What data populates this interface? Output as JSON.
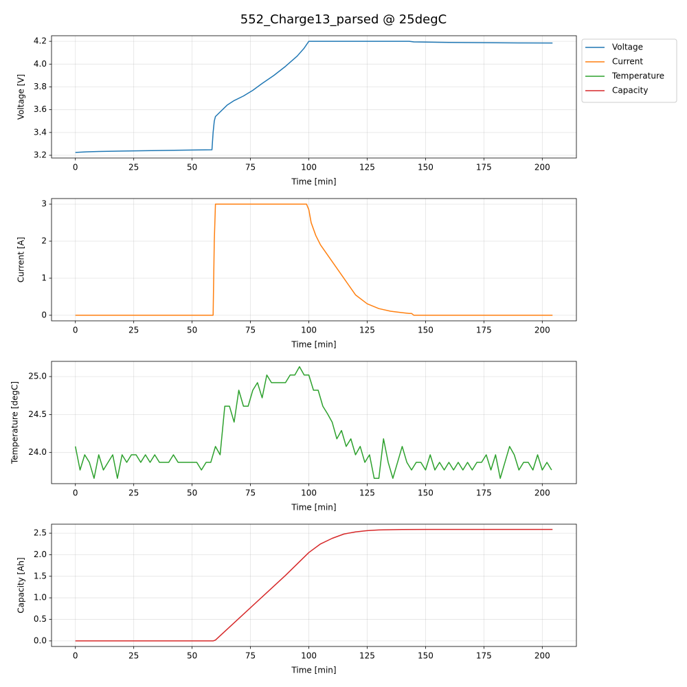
{
  "title": "552_Charge13_parsed @ 25degC",
  "chart_data": [
    {
      "type": "line",
      "xlabel": "Time [min]",
      "ylabel": "Voltage [V]",
      "grid": true,
      "xlim": [
        -10.22,
        214.62
      ],
      "ylim": [
        3.176,
        4.249
      ],
      "xticks": [
        0,
        25,
        50,
        75,
        100,
        125,
        150,
        175,
        200
      ],
      "yticks": [
        3.2,
        3.4,
        3.6,
        3.8,
        {
          "value": 4,
          "label": "4.0"
        },
        4.2
      ],
      "x": [
        0,
        5,
        10,
        20,
        30,
        40,
        50,
        58.5,
        59,
        59.5,
        60,
        62,
        65,
        68,
        72,
        76,
        80,
        85,
        90,
        95,
        98,
        100,
        110,
        120,
        130,
        143,
        145,
        150,
        160,
        175,
        190,
        204.4
      ],
      "series": [
        {
          "name": "Voltage",
          "color": "#1f77b4",
          "values": [
            3.225,
            3.23,
            3.233,
            3.237,
            3.24,
            3.243,
            3.246,
            3.248,
            3.4,
            3.5,
            3.54,
            3.58,
            3.64,
            3.68,
            3.72,
            3.77,
            3.83,
            3.9,
            3.98,
            4.07,
            4.14,
            4.2,
            4.2,
            4.2,
            4.2,
            4.2,
            4.195,
            4.193,
            4.19,
            4.188,
            4.186,
            4.185
          ]
        }
      ]
    },
    {
      "type": "line",
      "xlabel": "Time [min]",
      "ylabel": "Current [A]",
      "grid": true,
      "xlim": [
        -10.22,
        214.62
      ],
      "ylim": [
        -0.15,
        3.15
      ],
      "xticks": [
        0,
        25,
        50,
        75,
        100,
        125,
        150,
        175,
        200
      ],
      "yticks": [
        0,
        1,
        2,
        3
      ],
      "x": [
        0,
        59,
        59.5,
        60,
        70,
        90,
        99,
        100,
        101,
        103,
        105,
        110,
        115,
        120,
        125,
        130,
        135,
        140,
        143,
        144,
        145,
        204.4
      ],
      "series": [
        {
          "name": "Current",
          "color": "#ff7f0e",
          "values": [
            0,
            0,
            2.0,
            3.0,
            3.0,
            3.0,
            3.0,
            2.85,
            2.5,
            2.15,
            1.9,
            1.45,
            1.0,
            0.55,
            0.31,
            0.18,
            0.11,
            0.07,
            0.05,
            0.05,
            0,
            0
          ]
        }
      ]
    },
    {
      "type": "line",
      "xlabel": "Time [min]",
      "ylabel": "Temperature [degC]",
      "grid": true,
      "xlim": [
        -10.22,
        214.62
      ],
      "ylim": [
        23.59,
        25.2
      ],
      "xticks": [
        0,
        25,
        50,
        75,
        100,
        125,
        150,
        175,
        200
      ],
      "yticks": [
        {
          "value": 24,
          "label": "24.0"
        },
        24.5,
        {
          "value": 25,
          "label": "25.0"
        }
      ],
      "x": [
        0,
        2,
        4,
        6,
        8,
        10,
        12,
        14,
        16,
        18,
        20,
        22,
        24,
        26,
        28,
        30,
        32,
        34,
        36,
        38,
        40,
        42,
        44,
        46,
        48,
        50,
        52,
        54,
        56,
        58,
        60,
        62,
        64,
        66,
        68,
        70,
        72,
        74,
        76,
        78,
        80,
        82,
        84,
        86,
        88,
        90,
        92,
        94,
        96,
        98,
        100,
        102,
        104,
        106,
        108,
        110,
        112,
        114,
        116,
        118,
        120,
        122,
        124,
        126,
        128,
        130,
        132,
        134,
        136,
        138,
        140,
        142,
        144,
        146,
        148,
        150,
        152,
        154,
        156,
        158,
        160,
        162,
        164,
        166,
        168,
        170,
        172,
        174,
        176,
        178,
        180,
        182,
        184,
        186,
        188,
        190,
        192,
        194,
        196,
        198,
        200,
        202,
        204
      ],
      "series": [
        {
          "name": "Temperature",
          "color": "#2ca02c",
          "values": [
            24.08,
            23.77,
            23.97,
            23.87,
            23.66,
            23.97,
            23.77,
            23.87,
            23.97,
            23.66,
            23.97,
            23.87,
            23.97,
            23.97,
            23.87,
            23.97,
            23.87,
            23.97,
            23.87,
            23.87,
            23.87,
            23.97,
            23.87,
            23.87,
            23.87,
            23.87,
            23.87,
            23.77,
            23.87,
            23.87,
            24.08,
            23.97,
            24.61,
            24.61,
            24.4,
            24.82,
            24.61,
            24.61,
            24.82,
            24.92,
            24.72,
            25.02,
            24.92,
            24.92,
            24.92,
            24.92,
            25.02,
            25.02,
            25.13,
            25.02,
            25.02,
            24.82,
            24.82,
            24.61,
            24.51,
            24.4,
            24.18,
            24.29,
            24.08,
            24.18,
            23.97,
            24.08,
            23.87,
            23.97,
            23.66,
            23.66,
            24.18,
            23.87,
            23.66,
            23.87,
            24.08,
            23.87,
            23.77,
            23.87,
            23.87,
            23.77,
            23.97,
            23.77,
            23.87,
            23.77,
            23.87,
            23.77,
            23.87,
            23.77,
            23.87,
            23.77,
            23.87,
            23.87,
            23.97,
            23.77,
            23.97,
            23.66,
            23.87,
            24.08,
            23.97,
            23.77,
            23.87,
            23.87,
            23.77,
            23.97,
            23.77,
            23.87,
            23.77
          ]
        }
      ]
    },
    {
      "type": "line",
      "xlabel": "Time [min]",
      "ylabel": "Capacity [Ah]",
      "grid": true,
      "xlim": [
        -10.22,
        214.62
      ],
      "ylim": [
        -0.129,
        2.709
      ],
      "xticks": [
        0,
        25,
        50,
        75,
        100,
        125,
        150,
        175,
        200
      ],
      "yticks": [
        {
          "value": 0,
          "label": "0.0"
        },
        0.5,
        {
          "value": 1,
          "label": "1.0"
        },
        1.5,
        {
          "value": 2,
          "label": "2.0"
        },
        2.5
      ],
      "x": [
        0,
        59,
        60,
        70,
        80,
        90,
        100,
        105,
        110,
        115,
        120,
        125,
        130,
        140,
        150,
        204.4
      ],
      "series": [
        {
          "name": "Capacity",
          "color": "#d62728",
          "values": [
            0,
            0,
            0.02,
            0.52,
            1.02,
            1.52,
            2.05,
            2.25,
            2.38,
            2.48,
            2.53,
            2.56,
            2.575,
            2.585,
            2.587,
            2.587
          ]
        }
      ]
    }
  ]
}
